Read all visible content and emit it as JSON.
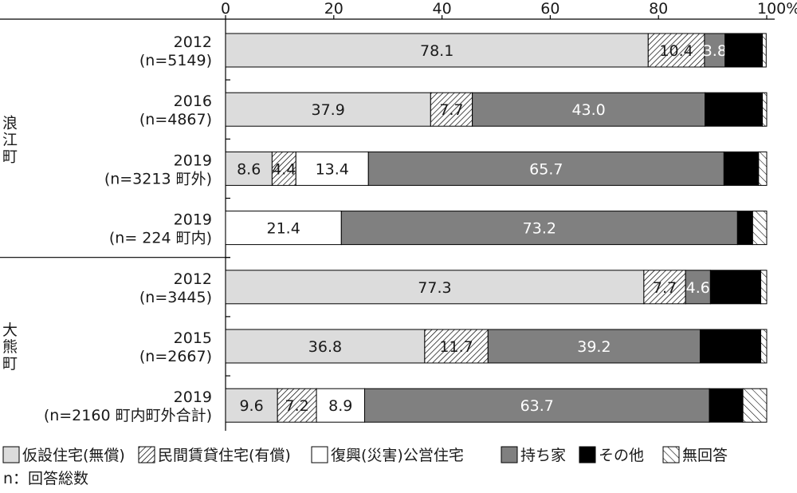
{
  "chart_data": {
    "type": "bar",
    "orientation": "horizontal",
    "stacked": true,
    "x_ticks": [
      "0",
      "20",
      "40",
      "60",
      "80",
      "100%"
    ],
    "xlim": [
      0,
      100
    ],
    "groups": [
      {
        "label": "浪江町",
        "chars": [
          "浪",
          "江",
          "町"
        ]
      },
      {
        "label": "大熊町",
        "chars": [
          "大",
          "熊",
          "町"
        ]
      }
    ],
    "rows": [
      {
        "group": 0,
        "year": "2012",
        "n": "(n=5149)"
      },
      {
        "group": 0,
        "year": "2016",
        "n": "(n=4867)"
      },
      {
        "group": 0,
        "year": "2019",
        "n": "(n=3213 町外)"
      },
      {
        "group": 0,
        "year": "2019",
        "n": "(n= 224 町内)"
      },
      {
        "group": 1,
        "year": "2012",
        "n": "(n=3445)"
      },
      {
        "group": 1,
        "year": "2015",
        "n": "(n=2667)"
      },
      {
        "group": 1,
        "year": "2019",
        "n": "(n=2160 町内町外合計)"
      }
    ],
    "series": [
      {
        "name": "仮設住宅(無償)",
        "fill": "#dcdcdc",
        "pattern": "none",
        "label_color": "#1a1a1a",
        "values": [
          78.1,
          37.9,
          8.6,
          0,
          77.3,
          36.8,
          9.6
        ]
      },
      {
        "name": "民間賃貸住宅(有償)",
        "fill": "#ffffff",
        "pattern": "dense-hatch",
        "label_color": "#1a1a1a",
        "values": [
          10.4,
          7.7,
          4.4,
          0,
          7.7,
          11.7,
          7.2
        ]
      },
      {
        "name": "復興(災害)公営住宅",
        "fill": "#ffffff",
        "pattern": "none",
        "label_color": "#1a1a1a",
        "values": [
          0,
          0,
          13.4,
          21.4,
          0,
          0,
          8.9
        ]
      },
      {
        "name": "持ち家",
        "fill": "#808080",
        "pattern": "none",
        "label_color": "#ffffff",
        "values": [
          3.8,
          43.0,
          65.7,
          73.2,
          4.6,
          39.2,
          63.7
        ]
      },
      {
        "name": "その他",
        "fill": "#000000",
        "pattern": "none",
        "label_color": "#ffffff",
        "values": [
          6.9,
          10.6,
          6.4,
          2.8,
          9.3,
          11.2,
          6.2
        ]
      },
      {
        "name": "無回答",
        "fill": "#ffffff",
        "pattern": "sparse-hatch",
        "label_color": "#1a1a1a",
        "values": [
          0.7,
          0.8,
          1.5,
          2.6,
          1.1,
          1.1,
          4.4
        ]
      }
    ],
    "data_labels": [
      [
        "78.1",
        "10.4",
        "",
        "3.8",
        "",
        ""
      ],
      [
        "37.9",
        "7.7",
        "",
        "43.0",
        "",
        ""
      ],
      [
        "8.6",
        "4.4",
        "13.4",
        "65.7",
        "",
        ""
      ],
      [
        "",
        "",
        "21.4",
        "73.2",
        "",
        ""
      ],
      [
        "77.3",
        "7.7",
        "",
        "4.6",
        "",
        ""
      ],
      [
        "36.8",
        "11.7",
        "",
        "39.2",
        "",
        ""
      ],
      [
        "9.6",
        "7.2",
        "8.9",
        "63.7",
        "",
        ""
      ]
    ],
    "legend_position": "bottom",
    "note": "n：回答総数"
  }
}
